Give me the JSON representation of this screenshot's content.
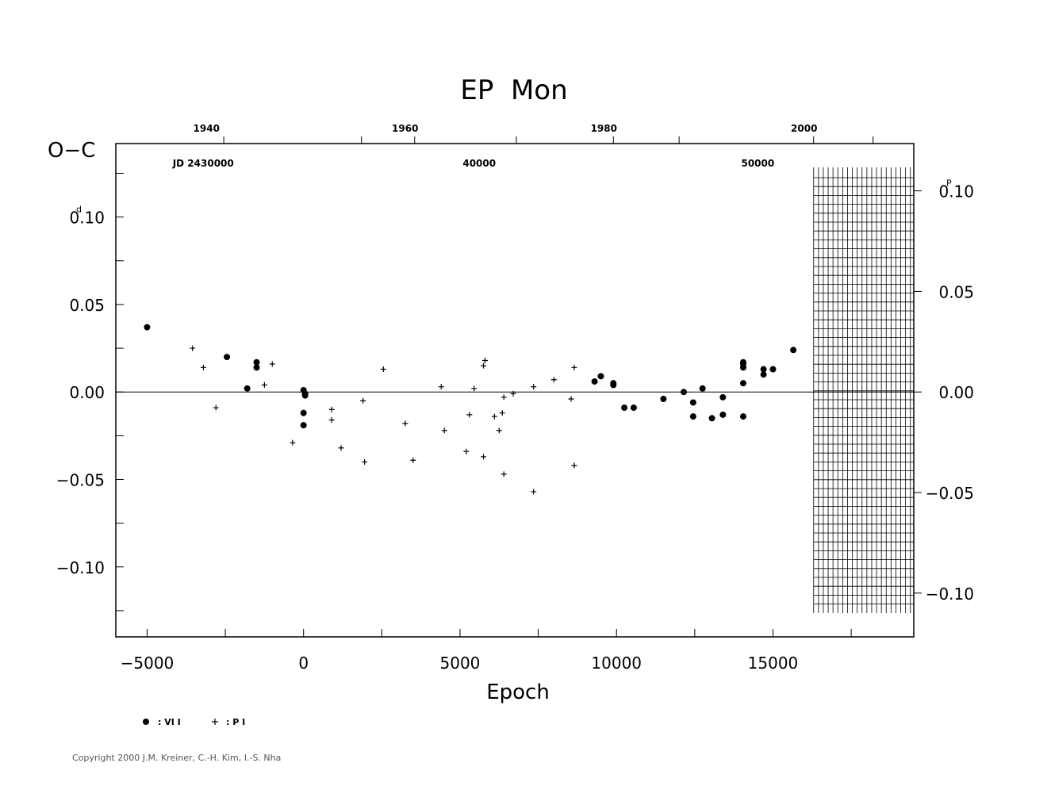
{
  "chart_data": {
    "type": "scatter",
    "title": "EP  Mon",
    "xlabel": "Epoch",
    "ylabel_left": "O−C",
    "xlim": [
      -6000,
      19500
    ],
    "ylim": [
      -0.14,
      0.142
    ],
    "right_ylim_phase": [
      -0.12,
      0.12
    ],
    "grid": false,
    "zero_line": true,
    "x_ticks": [
      "−5000",
      "0",
      "5000",
      "10000",
      "15000"
    ],
    "x_tick_values": [
      -5000,
      0,
      5000,
      10000,
      15000
    ],
    "y_ticks_left": [
      "0.10",
      "0.05",
      "0.00",
      "−0.05",
      "−0.10"
    ],
    "y_tick_values_left": [
      0.1,
      0.05,
      0.0,
      -0.05,
      -0.1
    ],
    "y_unit_left": "d",
    "y_ticks_right": [
      "0.10",
      "0.05",
      "0.00",
      "−0.05",
      "−0.10"
    ],
    "y_tick_values_right": [
      0.1,
      0.05,
      0.0,
      -0.05,
      -0.1
    ],
    "y_unit_right": "P",
    "top_year_labels": [
      "1940",
      "1960",
      "1980",
      "2000"
    ],
    "top_year_epochs": [
      -2800,
      3550,
      9900,
      16300
    ],
    "jd_labels": [
      "JD  2430000",
      "40000",
      "50000"
    ],
    "jd_label_epochs": [
      -2800,
      6300,
      15200
    ],
    "legend": [
      {
        "symbol": "dot",
        "label": ": VI I"
      },
      {
        "symbol": "plus",
        "label": ": P I"
      }
    ],
    "future_hatch_start_epoch": 16300,
    "series": [
      {
        "name": "VI I",
        "marker": "dot",
        "points": [
          [
            -5000,
            0.037
          ],
          [
            -2450,
            0.02
          ],
          [
            -1800,
            0.002
          ],
          [
            -1500,
            0.017
          ],
          [
            -1500,
            0.014
          ],
          [
            0,
            0.001
          ],
          [
            50,
            -0.001
          ],
          [
            50,
            -0.002
          ],
          [
            0,
            -0.012
          ],
          [
            0,
            -0.019
          ],
          [
            9300,
            0.006
          ],
          [
            9500,
            0.009
          ],
          [
            9900,
            0.005
          ],
          [
            9900,
            0.004
          ],
          [
            10250,
            -0.009
          ],
          [
            10550,
            -0.009
          ],
          [
            11500,
            -0.004
          ],
          [
            12150,
            0.0
          ],
          [
            12450,
            -0.014
          ],
          [
            12450,
            -0.006
          ],
          [
            12750,
            0.002
          ],
          [
            13050,
            -0.015
          ],
          [
            13400,
            -0.003
          ],
          [
            13400,
            -0.013
          ],
          [
            14050,
            0.017
          ],
          [
            14050,
            0.016
          ],
          [
            14050,
            0.014
          ],
          [
            14050,
            0.005
          ],
          [
            14050,
            -0.014
          ],
          [
            14700,
            0.013
          ],
          [
            14700,
            0.01
          ],
          [
            15000,
            0.013
          ],
          [
            15650,
            0.024
          ]
        ]
      },
      {
        "name": "P I",
        "marker": "plus",
        "points": [
          [
            -3550,
            0.025
          ],
          [
            -3200,
            0.014
          ],
          [
            -2800,
            -0.009
          ],
          [
            -1250,
            0.004
          ],
          [
            -1000,
            0.016
          ],
          [
            -350,
            -0.029
          ],
          [
            900,
            -0.01
          ],
          [
            900,
            -0.016
          ],
          [
            1200,
            -0.032
          ],
          [
            1900,
            -0.005
          ],
          [
            1950,
            -0.04
          ],
          [
            2550,
            0.013
          ],
          [
            3250,
            -0.018
          ],
          [
            3500,
            -0.039
          ],
          [
            4400,
            0.003
          ],
          [
            4500,
            -0.022
          ],
          [
            5200,
            -0.034
          ],
          [
            5300,
            -0.013
          ],
          [
            5450,
            0.002
          ],
          [
            5750,
            0.015
          ],
          [
            5800,
            0.018
          ],
          [
            5750,
            -0.037
          ],
          [
            6100,
            -0.014
          ],
          [
            6250,
            -0.022
          ],
          [
            6350,
            -0.012
          ],
          [
            6400,
            -0.003
          ],
          [
            6400,
            -0.047
          ],
          [
            6700,
            -0.001
          ],
          [
            7350,
            0.003
          ],
          [
            7350,
            -0.057
          ],
          [
            8000,
            0.007
          ],
          [
            8550,
            -0.004
          ],
          [
            8650,
            0.014
          ],
          [
            8650,
            -0.042
          ]
        ]
      }
    ]
  },
  "copyright": "Copyright 2000 J.M. Kreiner, C.-H. Kim, I.-S. Nha"
}
